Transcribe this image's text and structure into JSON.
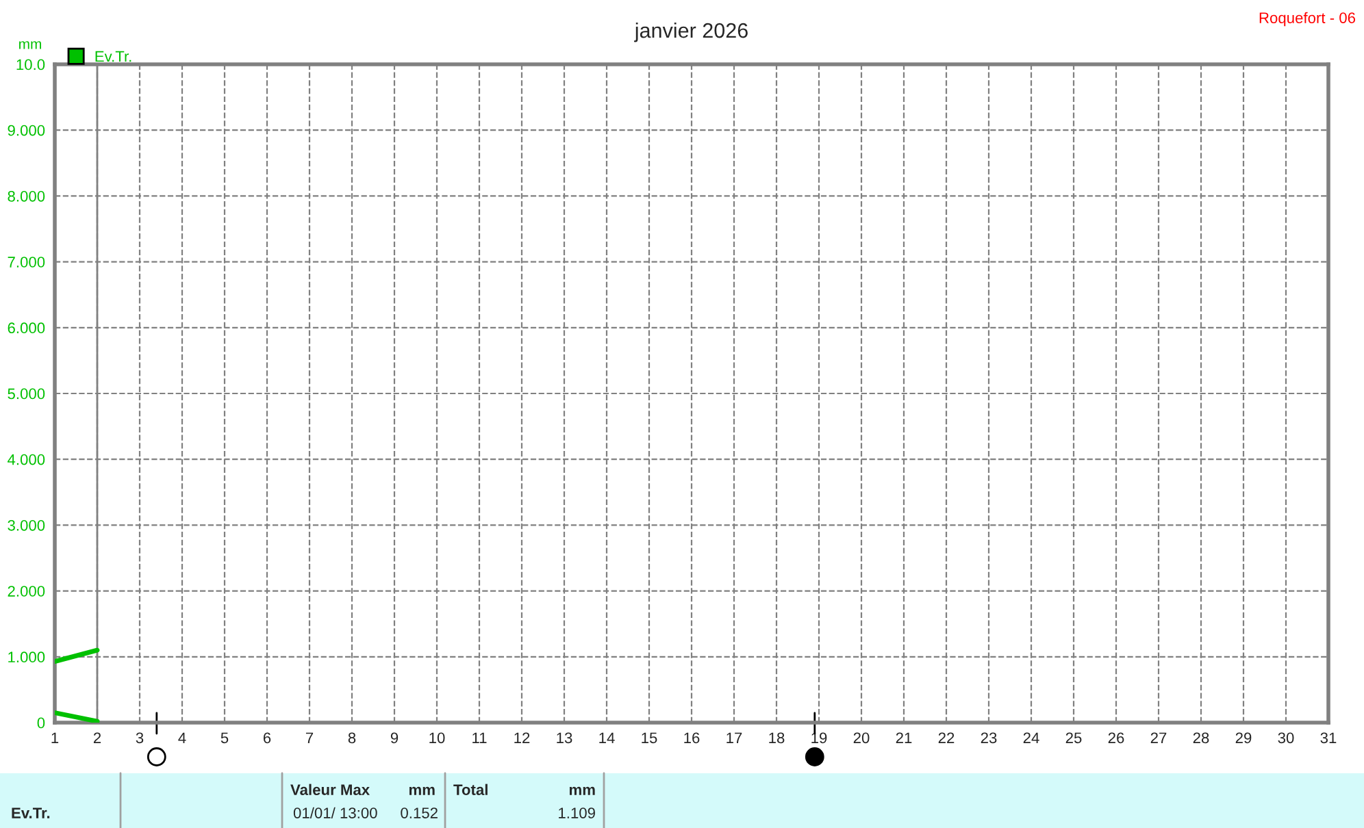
{
  "chart_data": {
    "type": "line",
    "title": "janvier 2026",
    "subtitle": "Roquefort - 06",
    "ylabel": "mm",
    "x": [
      1,
      2
    ],
    "series": [
      {
        "name": "Ev.Tr.",
        "color": "#00c000",
        "values": [
          0.93,
          1.1
        ]
      },
      {
        "color": "#00c000",
        "values": [
          0.15,
          0.02
        ]
      }
    ],
    "xlim": [
      1,
      31
    ],
    "xticks": [
      1,
      2,
      3,
      4,
      5,
      6,
      7,
      8,
      9,
      10,
      11,
      12,
      13,
      14,
      15,
      16,
      17,
      18,
      19,
      20,
      21,
      22,
      23,
      24,
      25,
      26,
      27,
      28,
      29,
      30,
      31
    ],
    "ylim": [
      0,
      10
    ],
    "yticks": [
      0,
      {
        "value": 1,
        "label": "1.000"
      },
      {
        "value": 2,
        "label": "2.000"
      },
      {
        "value": 3,
        "label": "3.000"
      },
      {
        "value": 4,
        "label": "4.000"
      },
      {
        "value": 5,
        "label": "5.000"
      },
      {
        "value": 6,
        "label": "6.000"
      },
      {
        "value": 7,
        "label": "7.000"
      },
      {
        "value": 8,
        "label": "8.000"
      },
      {
        "value": 9,
        "label": "9.000"
      },
      {
        "value": 10,
        "label": "10.0"
      }
    ],
    "ref_lines": [
      {
        "axis": "x",
        "value": 2,
        "color": "#808080",
        "line_style": "solid"
      }
    ],
    "grid": true,
    "legend": "top left",
    "marker": "none",
    "line_style": "solid",
    "annotations": [
      "Ev.Tr.",
      "Valeur Max",
      "mm",
      "01/01/ 13:00",
      "0.152",
      "Total",
      "mm",
      "1.109"
    ]
  }
}
